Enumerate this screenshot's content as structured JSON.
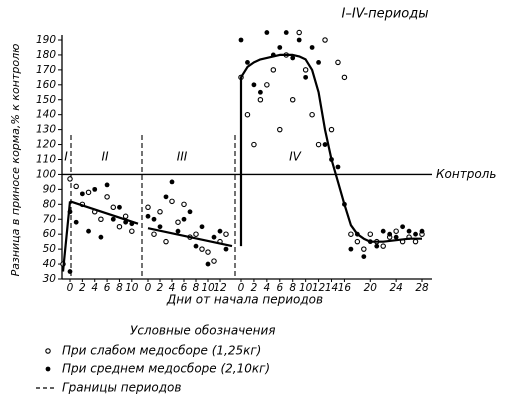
{
  "chart_data": {
    "type": "scatter",
    "title": "I–IV-периоды",
    "ylabel": "Разница в приносе корма,% к контролю",
    "xlabel": "Дни от начала периодов",
    "ylim": [
      30,
      190
    ],
    "yticks": [
      30,
      40,
      50,
      60,
      70,
      80,
      90,
      100,
      110,
      120,
      130,
      140,
      150,
      160,
      170,
      180,
      190
    ],
    "control": {
      "value": 100,
      "label": "Контроль"
    },
    "legend_title": "Условные обозначения",
    "series": [
      {
        "name": "При слабом медосборе (1,25кг)",
        "marker": "open",
        "color": "#000000"
      },
      {
        "name": "При среднем медосборе (2,10кг)",
        "marker": "filled",
        "color": "#000000"
      }
    ],
    "boundary_label": "Границы периодов",
    "periods": [
      {
        "name": "I",
        "xlim": [
          0,
          1
        ],
        "xticks": [],
        "series": [
          {
            "x": [
              0
            ],
            "values": [
              40
            ]
          },
          {
            "x": [
              1
            ],
            "values": [
              35
            ]
          }
        ],
        "curve": {
          "x": [
            0,
            1
          ],
          "values": [
            35,
            82
          ]
        }
      },
      {
        "name": "II",
        "xlim": [
          0,
          11
        ],
        "xticks": [
          0,
          2,
          4,
          6,
          8,
          10
        ],
        "series": [
          {
            "x": [
              0,
              1,
              2,
              3,
              4,
              5,
              6,
              7,
              8,
              9,
              10
            ],
            "values": [
              97,
              92,
              80,
              88,
              75,
              70,
              85,
              78,
              65,
              72,
              62
            ]
          },
          {
            "x": [
              0,
              1,
              2,
              3,
              4,
              5,
              6,
              7,
              8,
              9,
              10
            ],
            "values": [
              75,
              68,
              87,
              62,
              90,
              58,
              93,
              70,
              78,
              68,
              67
            ]
          }
        ],
        "curve": {
          "x": [
            0,
            11
          ],
          "values": [
            82,
            67
          ]
        }
      },
      {
        "name": "III",
        "xlim": [
          0,
          14
        ],
        "xticks": [
          0,
          2,
          4,
          6,
          8,
          10,
          12
        ],
        "series": [
          {
            "x": [
              0,
              1,
              2,
              3,
              4,
              5,
              6,
              7,
              8,
              9,
              10,
              11,
              12,
              13
            ],
            "values": [
              78,
              60,
              75,
              55,
              82,
              68,
              80,
              58,
              60,
              50,
              48,
              42,
              55,
              60
            ]
          },
          {
            "x": [
              0,
              1,
              2,
              3,
              4,
              5,
              6,
              7,
              8,
              9,
              10,
              11,
              12,
              13
            ],
            "values": [
              72,
              70,
              65,
              85,
              95,
              62,
              70,
              75,
              52,
              65,
              40,
              58,
              62,
              50
            ]
          }
        ],
        "curve": {
          "x": [
            0,
            14
          ],
          "values": [
            64,
            52
          ]
        }
      },
      {
        "name": "IV",
        "xlim": [
          0,
          28
        ],
        "xticks": [
          0,
          2,
          4,
          6,
          8,
          10,
          12,
          14,
          16,
          20,
          24,
          28
        ],
        "series": [
          {
            "x": [
              0,
              1,
              2,
              3,
              4,
              5,
              6,
              7,
              8,
              9,
              10,
              11,
              12,
              13,
              14,
              15,
              16,
              17,
              18,
              19,
              20,
              21,
              22,
              23,
              24,
              25,
              26,
              27,
              28
            ],
            "values": [
              165,
              140,
              120,
              150,
              160,
              170,
              130,
              180,
              150,
              195,
              170,
              140,
              120,
              190,
              130,
              175,
              165,
              60,
              55,
              50,
              60,
              55,
              52,
              58,
              62,
              55,
              58,
              55,
              60
            ]
          },
          {
            "x": [
              0,
              1,
              2,
              3,
              4,
              5,
              6,
              7,
              8,
              9,
              10,
              11,
              12,
              13,
              14,
              15,
              16,
              17,
              18,
              19,
              20,
              21,
              22,
              23,
              24,
              25,
              26,
              27,
              28
            ],
            "values": [
              190,
              175,
              160,
              155,
              195,
              180,
              185,
              195,
              178,
              190,
              165,
              185,
              175,
              120,
              110,
              105,
              80,
              50,
              60,
              45,
              55,
              52,
              62,
              60,
              58,
              65,
              62,
              60,
              62
            ]
          }
        ],
        "curve": {
          "x": [
            0,
            0,
            1,
            2,
            3,
            4,
            5,
            6,
            7,
            8,
            9,
            10,
            11,
            12,
            13,
            14,
            15,
            16,
            17,
            18,
            19,
            20,
            22,
            24,
            26,
            28
          ],
          "values": [
            52,
            165,
            172,
            175,
            177,
            178,
            179,
            180,
            180,
            180,
            179,
            177,
            170,
            155,
            130,
            110,
            95,
            80,
            66,
            60,
            57,
            55,
            55,
            56,
            57,
            57
          ]
        }
      }
    ]
  }
}
